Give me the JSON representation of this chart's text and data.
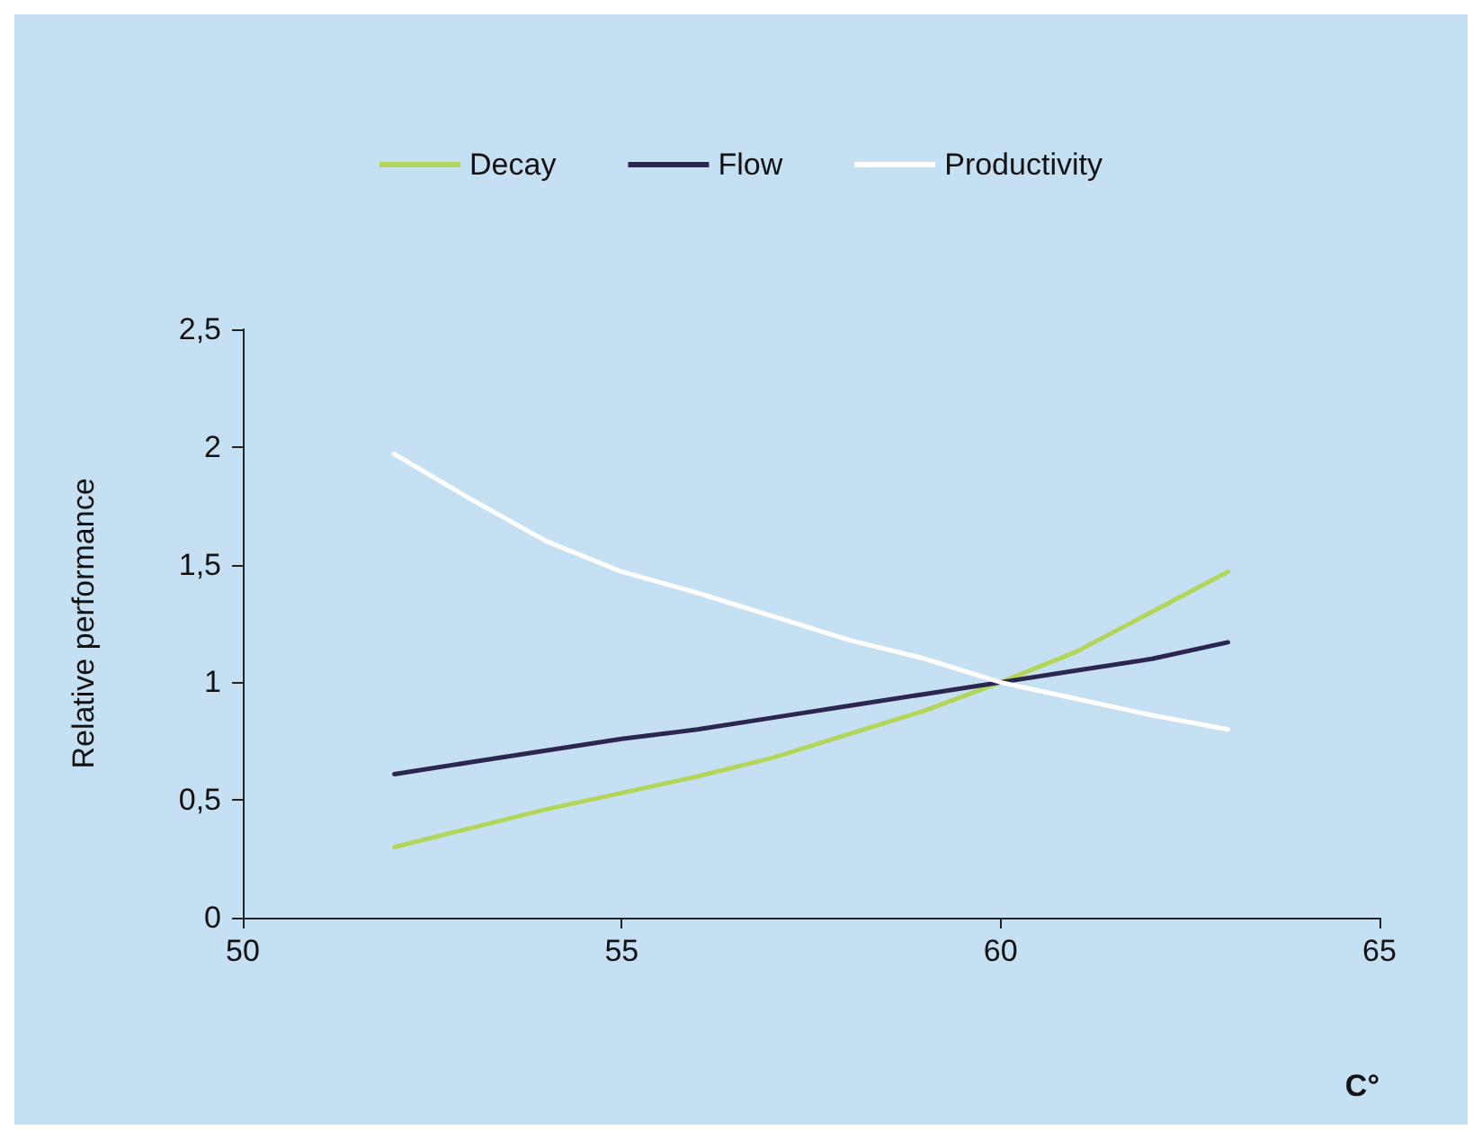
{
  "chart_data": {
    "type": "line",
    "xlabel": "C°",
    "ylabel": "Relative performance",
    "x": [
      52,
      53,
      54,
      55,
      56,
      57,
      58,
      59,
      60,
      61,
      62,
      63
    ],
    "series": [
      {
        "name": "Decay",
        "color": "#b3d65a",
        "values": [
          0.3,
          0.38,
          0.46,
          0.53,
          0.6,
          0.68,
          0.78,
          0.88,
          1.0,
          1.13,
          1.3,
          1.47
        ]
      },
      {
        "name": "Flow",
        "color": "#2b2650",
        "values": [
          0.61,
          0.66,
          0.71,
          0.76,
          0.8,
          0.85,
          0.9,
          0.95,
          1.0,
          1.05,
          1.1,
          1.17
        ]
      },
      {
        "name": "Productivity",
        "color": "#ffffff",
        "values": [
          1.97,
          1.78,
          1.6,
          1.47,
          1.38,
          1.28,
          1.18,
          1.1,
          1.0,
          0.93,
          0.86,
          0.8
        ]
      }
    ],
    "xlim": [
      50,
      65
    ],
    "xticks": [
      50,
      55,
      60,
      65
    ],
    "ylim": [
      0,
      2.5
    ],
    "yticks": [
      0,
      {
        "value": 0.5,
        "label": "0,5"
      },
      1,
      {
        "value": 1.5,
        "label": "1,5"
      },
      2,
      {
        "value": 2.5,
        "label": "2,5"
      }
    ],
    "grid": false,
    "legend": "top",
    "marker": "none",
    "line_style": "solid"
  }
}
